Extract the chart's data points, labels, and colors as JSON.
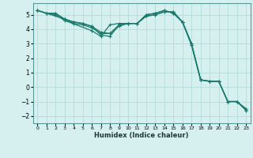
{
  "title": "",
  "xlabel": "Humidex (Indice chaleur)",
  "ylabel": "",
  "background_color": "#d6f0f0",
  "grid_color": "#b8dede",
  "line_color": "#1a7a6e",
  "xlim": [
    -0.5,
    23.5
  ],
  "ylim": [
    -2.5,
    5.8
  ],
  "xticks": [
    0,
    1,
    2,
    3,
    4,
    5,
    6,
    7,
    8,
    9,
    10,
    11,
    12,
    13,
    14,
    15,
    16,
    17,
    18,
    19,
    20,
    21,
    22,
    23
  ],
  "yticks": [
    -2,
    -1,
    0,
    1,
    2,
    3,
    4,
    5
  ],
  "lines": [
    {
      "x": [
        0,
        1,
        2,
        3,
        4,
        5,
        6,
        7,
        8,
        9,
        10,
        11,
        12,
        13,
        14,
        15,
        16,
        17,
        18,
        19,
        20,
        21,
        22,
        23
      ],
      "y": [
        5.3,
        5.1,
        5.1,
        4.7,
        4.5,
        4.4,
        4.2,
        3.6,
        3.5,
        4.3,
        4.4,
        4.4,
        5.0,
        5.1,
        5.3,
        5.1,
        4.5,
        3.0,
        0.5,
        0.4,
        0.4,
        -1.0,
        -1.0,
        -1.5
      ]
    },
    {
      "x": [
        0,
        1,
        2,
        3,
        4,
        5,
        6,
        7,
        8,
        9,
        10,
        11,
        12,
        13,
        14,
        15,
        16,
        17,
        18,
        19,
        20,
        21,
        22,
        23
      ],
      "y": [
        5.3,
        5.1,
        5.1,
        4.7,
        4.5,
        4.4,
        4.2,
        3.8,
        3.7,
        4.3,
        4.4,
        4.4,
        5.0,
        5.1,
        5.3,
        5.1,
        4.5,
        3.0,
        0.5,
        0.4,
        0.4,
        -1.0,
        -1.0,
        -1.5
      ]
    },
    {
      "x": [
        0,
        3,
        4,
        5,
        6,
        7,
        8,
        9,
        10,
        11,
        12,
        13,
        14,
        15,
        16,
        17,
        18,
        19,
        20,
        21,
        22,
        23
      ],
      "y": [
        5.3,
        4.7,
        4.4,
        4.3,
        4.1,
        3.7,
        3.7,
        4.2,
        4.4,
        4.4,
        4.9,
        5.0,
        5.2,
        5.2,
        4.5,
        2.9,
        0.5,
        0.4,
        0.4,
        -1.0,
        -1.0,
        -1.6
      ]
    },
    {
      "x": [
        0,
        1,
        2,
        3,
        6,
        7,
        8,
        9,
        10,
        11,
        12,
        13,
        14,
        15,
        16,
        17,
        18,
        19,
        20,
        21,
        22,
        23
      ],
      "y": [
        5.3,
        5.1,
        5.0,
        4.6,
        3.9,
        3.5,
        4.3,
        4.4,
        4.4,
        4.4,
        4.9,
        5.0,
        5.2,
        5.2,
        4.5,
        2.9,
        0.5,
        0.4,
        0.4,
        -1.0,
        -1.0,
        -1.6
      ]
    }
  ]
}
